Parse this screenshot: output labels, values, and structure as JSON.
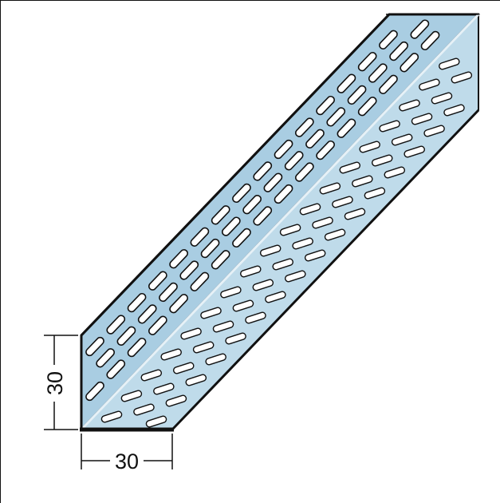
{
  "dimensions": {
    "height_label": "30",
    "width_label": "30"
  },
  "colors": {
    "profile_fill": "#a9cde2",
    "profile_shade": "#c9e1ee",
    "outline": "#111111",
    "slot_fill": "#ffffff"
  }
}
